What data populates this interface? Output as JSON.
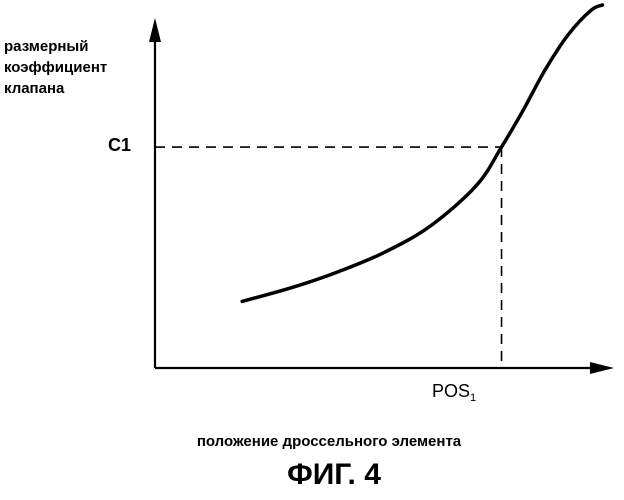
{
  "chart_data": {
    "type": "line",
    "ylabel_lines": [
      "размерный",
      "коэффициент",
      "клапана"
    ],
    "xlabel": "положение дроссельного элемента",
    "caption": "ФИГ. 4",
    "marker": {
      "y_tick_label": "C1",
      "x_tick_main": "POS",
      "x_tick_sub": "1",
      "x": 0.755,
      "y": 0.63
    },
    "xlim": [
      0,
      1
    ],
    "ylim": [
      0,
      1.035
    ],
    "series": [
      {
        "x": [
          0.19,
          0.3,
          0.4,
          0.5,
          0.6,
          0.7,
          0.755,
          0.8,
          0.85,
          0.9,
          0.95,
          0.975
        ],
        "y": [
          0.19,
          0.23,
          0.275,
          0.33,
          0.405,
          0.52,
          0.63,
          0.73,
          0.85,
          0.95,
          1.02,
          1.035
        ]
      }
    ],
    "grid": false,
    "axis_color": "#000000",
    "curve_color": "#000000"
  }
}
